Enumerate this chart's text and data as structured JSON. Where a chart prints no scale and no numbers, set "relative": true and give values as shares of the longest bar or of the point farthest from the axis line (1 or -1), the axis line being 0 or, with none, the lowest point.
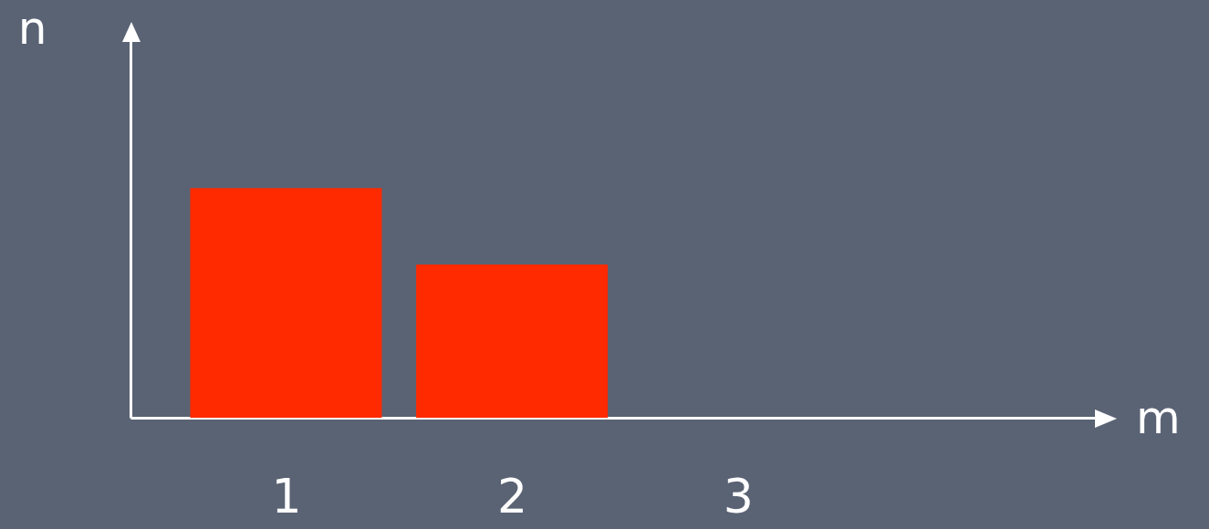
{
  "chart_data": {
    "type": "bar",
    "relative": true,
    "ylabel": "n",
    "annotations": [
      "m"
    ],
    "categories": [
      "1",
      "2",
      "3"
    ],
    "grid": false,
    "series": [
      {
        "color": "#ff2a00",
        "values": [
          1,
          0.667,
          0
        ]
      }
    ]
  }
}
